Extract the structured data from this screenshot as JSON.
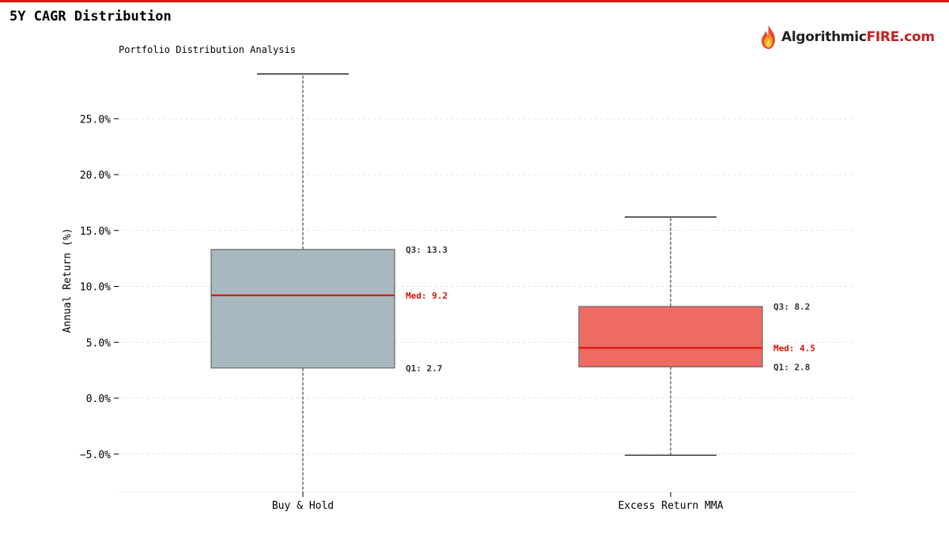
{
  "page": {
    "title": "5Y CAGR Distribution"
  },
  "logo": {
    "text_a": "Algorithmic",
    "text_b": "FIRE.com",
    "icon": "flame-icon"
  },
  "colors": {
    "accent": "#cc1f10",
    "grid": "#dddddd",
    "median": "#dd1100",
    "logo_red": "#c41e1e"
  },
  "chart_data": {
    "type": "box",
    "title": "Portfolio Distribution Analysis",
    "xlabel": "",
    "ylabel": "Annual Return (%)",
    "ylim": [
      -8.5,
      30
    ],
    "yticks": [
      -5,
      0,
      5,
      10,
      15,
      20,
      25
    ],
    "ytick_labels": [
      "−5.0%",
      "0.0%",
      "5.0%",
      "10.0%",
      "15.0%",
      "20.0%",
      "25.0%"
    ],
    "grid": true,
    "categories": [
      "Buy & Hold",
      "Excess Return MMA"
    ],
    "series": [
      {
        "whisker_low": -8.5,
        "q1": 2.7,
        "median": 9.2,
        "q3": 13.3,
        "whisker_high": 29.0,
        "fill": "#a8b8bf",
        "q1_label": "Q1: 2.7",
        "median_label": "Med: 9.2",
        "q3_label": "Q3: 13.3"
      },
      {
        "whisker_low": -5.1,
        "q1": 2.8,
        "median": 4.5,
        "q3": 8.2,
        "whisker_high": 16.2,
        "fill": "#ee6b64",
        "q1_label": "Q1: 2.8",
        "median_label": "Med: 4.5",
        "q3_label": "Q3: 8.2"
      }
    ]
  }
}
